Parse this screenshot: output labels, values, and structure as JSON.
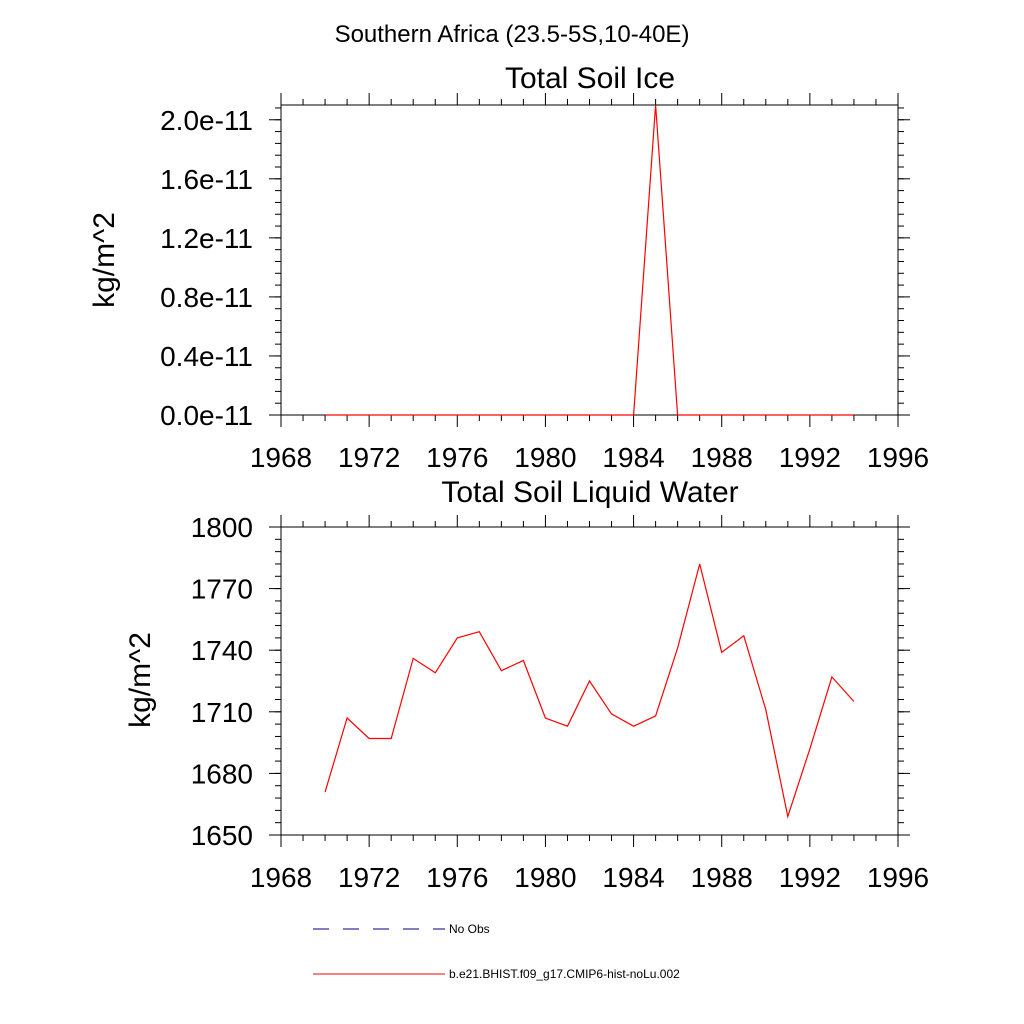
{
  "figure": {
    "suptitle": "Southern Africa (23.5-5S,10-40E)"
  },
  "chart_data": [
    {
      "type": "line",
      "title": "Total Soil Ice",
      "xlabel": "",
      "ylabel": "kg/m^2",
      "xlim": [
        1968,
        1996
      ],
      "ylim": [
        0,
        2.1e-11
      ],
      "xticks": [
        1968,
        1972,
        1976,
        1980,
        1984,
        1988,
        1992,
        1996
      ],
      "xtick_labels": [
        "1968",
        "1972",
        "1976",
        "1980",
        "1984",
        "1988",
        "1992",
        "1996"
      ],
      "yticks": [
        0,
        4e-12,
        8e-12,
        1.2e-11,
        1.6e-11,
        2e-11
      ],
      "ytick_labels": [
        "0.0e-11",
        "0.4e-11",
        "0.8e-11",
        "1.2e-11",
        "1.6e-11",
        "2.0e-11"
      ],
      "grid": false,
      "series": [
        {
          "name": "b.e21.BHIST.f09_g17.CMIP6-hist-noLu.002",
          "color": "#ff0000",
          "x": [
            1970,
            1971,
            1972,
            1973,
            1974,
            1975,
            1976,
            1977,
            1978,
            1979,
            1980,
            1981,
            1982,
            1983,
            1984,
            1985,
            1986,
            1987,
            1988,
            1989,
            1990,
            1991,
            1992,
            1993,
            1994
          ],
          "y": [
            0,
            0,
            0,
            0,
            0,
            0,
            0,
            0,
            0,
            0,
            0,
            0,
            0,
            0,
            0,
            2.1e-11,
            0,
            0,
            0,
            0,
            0,
            0,
            0,
            0,
            0
          ]
        }
      ]
    },
    {
      "type": "line",
      "title": "Total Soil Liquid Water",
      "xlabel": "",
      "ylabel": "kg/m^2",
      "xlim": [
        1968,
        1996
      ],
      "ylim": [
        1650,
        1800
      ],
      "xticks": [
        1968,
        1972,
        1976,
        1980,
        1984,
        1988,
        1992,
        1996
      ],
      "xtick_labels": [
        "1968",
        "1972",
        "1976",
        "1980",
        "1984",
        "1988",
        "1992",
        "1996"
      ],
      "yticks": [
        1650,
        1680,
        1710,
        1740,
        1770,
        1800
      ],
      "ytick_labels": [
        "1650",
        "1680",
        "1710",
        "1740",
        "1770",
        "1800"
      ],
      "grid": false,
      "series": [
        {
          "name": "b.e21.BHIST.f09_g17.CMIP6-hist-noLu.002",
          "color": "#ff0000",
          "x": [
            1970,
            1971,
            1972,
            1973,
            1974,
            1975,
            1976,
            1977,
            1978,
            1979,
            1980,
            1981,
            1982,
            1983,
            1984,
            1985,
            1986,
            1987,
            1988,
            1989,
            1990,
            1991,
            1992,
            1993,
            1994
          ],
          "y": [
            1671,
            1707,
            1697,
            1697,
            1736,
            1729,
            1746,
            1749,
            1730,
            1735,
            1707,
            1703,
            1725,
            1709,
            1703,
            1708,
            1741,
            1782,
            1739,
            1747,
            1711,
            1659,
            1692,
            1727,
            1715
          ]
        }
      ]
    }
  ],
  "legend": {
    "placement": "bottom",
    "entries": [
      {
        "label": "No Obs",
        "style": "dashed",
        "color": "#000080"
      },
      {
        "label": "b.e21.BHIST.f09_g17.CMIP6-hist-noLu.002",
        "style": "solid",
        "color": "#ff0000"
      }
    ]
  }
}
